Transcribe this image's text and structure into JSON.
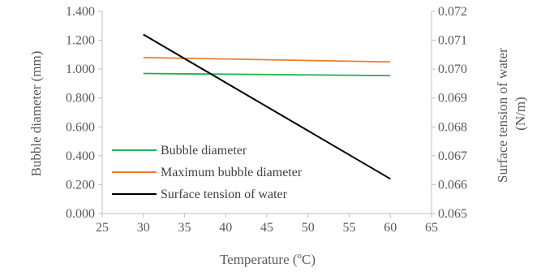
{
  "chart_data": {
    "type": "line",
    "xlabel": "Temperature (°C)",
    "xlabel_parts": {
      "pre": "Temperature (",
      "sup": "o",
      "post": "C)"
    },
    "ylabel_left": "Bubble diameter (mm)",
    "ylabel_right_line1": "Surface tension of water",
    "ylabel_right_line2": "(N/m)",
    "xlim": [
      25,
      65
    ],
    "x_ticks": [
      "25",
      "30",
      "35",
      "40",
      "45",
      "50",
      "55",
      "60",
      "65"
    ],
    "ylim_left": [
      0,
      1.4
    ],
    "y_left_ticks": [
      "0.000",
      "0.200",
      "0.400",
      "0.600",
      "0.800",
      "1.000",
      "1.200",
      "1.400"
    ],
    "ylim_right": [
      0.065,
      0.072
    ],
    "y_right_ticks": [
      "0.065",
      "0.066",
      "0.067",
      "0.068",
      "0.069",
      "0.070",
      "0.071",
      "0.072"
    ],
    "grid": false,
    "legend_position": "bottom-left",
    "series": [
      {
        "name": "Bubble diameter",
        "axis": "left",
        "color": "#22b04b",
        "x": [
          30,
          60
        ],
        "y": [
          0.97,
          0.955
        ]
      },
      {
        "name": "Maximum bubble diameter",
        "axis": "left",
        "color": "#ed7d31",
        "x": [
          30,
          60
        ],
        "y": [
          1.08,
          1.05
        ]
      },
      {
        "name": "Surface tension of water",
        "axis": "right",
        "color": "#000000",
        "x": [
          30,
          60
        ],
        "y": [
          0.0712,
          0.0662
        ]
      }
    ]
  }
}
